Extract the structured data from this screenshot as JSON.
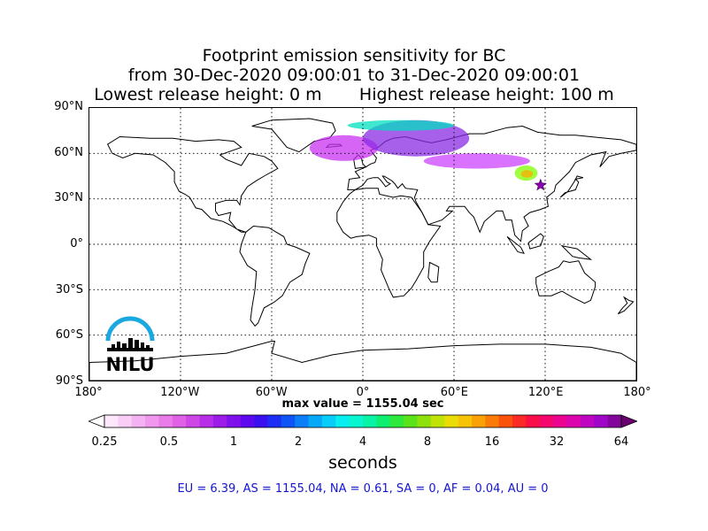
{
  "title": {
    "line1": "Footprint emission sensitivity for BC",
    "line2": "from 30-Dec-2020 09:00:01 to 31-Dec-2020 09:00:01",
    "line3": "Lowest release height: 0 m       Highest release height: 100 m"
  },
  "map": {
    "projection": "equirectangular",
    "lon_range": [
      -180,
      180
    ],
    "lat_range": [
      -90,
      90
    ],
    "lat_labels": [
      "90°N",
      "60°N",
      "30°N",
      "0°",
      "30°S",
      "60°S",
      "90°S"
    ],
    "lon_labels": [
      "180°",
      "120°W",
      "60°W",
      "0°",
      "60°E",
      "120°E",
      "180°"
    ],
    "gridlines": true,
    "release_site": {
      "lon": 117,
      "lat": 39,
      "marker": "star-icon",
      "color": "#8b00b0"
    },
    "sensitivity_plume": [
      {
        "lon_range": [
          -35,
          10
        ],
        "lat_range": [
          55,
          72
        ],
        "level": "0.5",
        "color": "#c830f0"
      },
      {
        "lon_range": [
          0,
          70
        ],
        "lat_range": [
          58,
          82
        ],
        "level": "1",
        "color": "#8a2be2"
      },
      {
        "lon_range": [
          40,
          110
        ],
        "lat_range": [
          50,
          60
        ],
        "level": "0.5",
        "color": "#cc44ff"
      },
      {
        "lon_range": [
          -10,
          60
        ],
        "lat_range": [
          75,
          82
        ],
        "level": "4",
        "color": "#00e0c0"
      },
      {
        "lon_range": [
          100,
          115
        ],
        "lat_range": [
          42,
          52
        ],
        "level": "8",
        "color": "#80ff00"
      },
      {
        "lon_range": [
          104,
          112
        ],
        "lat_range": [
          44,
          49
        ],
        "level": "16",
        "color": "#ffaa00"
      }
    ],
    "logo_text": "NILU",
    "logo_icon": "nilu-logo-icon",
    "logo_color": "#1aa8e0"
  },
  "max_value": "max value = 1155.04 sec",
  "colorbar": {
    "ticks": [
      "0.25",
      "0.5",
      "1",
      "2",
      "4",
      "8",
      "16",
      "32",
      "64"
    ],
    "colors": [
      "#fde7fb",
      "#f9cdf6",
      "#f5b2f2",
      "#f097ee",
      "#ea7ce9",
      "#e061e6",
      "#cf46e6",
      "#b82ee8",
      "#9d1cea",
      "#7f10ec",
      "#5d08ee",
      "#3a0ff0",
      "#1d2ff2",
      "#0f55f5",
      "#0a7ff7",
      "#08a8f8",
      "#08cdf8",
      "#08eef0",
      "#08f5d0",
      "#08f3a5",
      "#10ee70",
      "#2ee83b",
      "#5be31a",
      "#8ee10c",
      "#c1e207",
      "#eadc07",
      "#f7c307",
      "#f9a107",
      "#fa7b07",
      "#fb520b",
      "#fb2a24",
      "#f90e48",
      "#f5056e",
      "#ec0490",
      "#db04ad",
      "#c005c1",
      "#a006c7",
      "#82069b"
    ],
    "under_color": "#ffffff",
    "over_color": "#6a0070"
  },
  "units": "seconds",
  "regions": "EU = 6.39,  AS = 1155.04,  NA = 0.61,  SA = 0,  AF = 0.04,  AU = 0"
}
